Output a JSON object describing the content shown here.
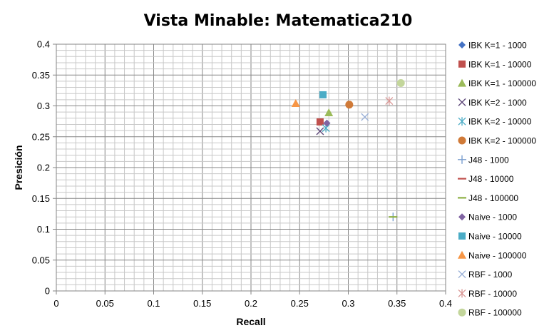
{
  "chart_data": {
    "type": "scatter",
    "title": "Vista Minable: Matematica210",
    "xlabel": "Recall",
    "ylabel": "Presición",
    "xlim": [
      0,
      0.4
    ],
    "ylim": [
      0,
      0.4
    ],
    "x_ticks": [
      "0",
      "0.05",
      "0.1",
      "0.15",
      "0.2",
      "0.25",
      "0.3",
      "0.35",
      "0.4"
    ],
    "y_ticks": [
      "0",
      "0.05",
      "0.1",
      "0.15",
      "0.2",
      "0.25",
      "0.3",
      "0.35",
      "0.4"
    ],
    "grid": "major and minor",
    "legend_position": "right",
    "series": [
      {
        "name": "IBK K=1 - 1000",
        "marker": "diamond",
        "color": "#4472C4",
        "points": [
          [
            0.278,
            0.272
          ]
        ]
      },
      {
        "name": "IBK K=1 - 10000",
        "marker": "square",
        "color": "#C0504D",
        "points": [
          [
            0.271,
            0.274
          ]
        ]
      },
      {
        "name": "IBK K=1 - 100000",
        "marker": "triangle",
        "color": "#9BBB59",
        "points": [
          [
            0.28,
            0.289
          ]
        ]
      },
      {
        "name": "IBK K=2 - 1000",
        "marker": "x",
        "color": "#604A7B",
        "points": [
          [
            0.271,
            0.259
          ]
        ]
      },
      {
        "name": "IBK K=2 - 10000",
        "marker": "star",
        "color": "#4BACC6",
        "points": [
          [
            0.277,
            0.264
          ]
        ]
      },
      {
        "name": "IBK K=2 - 100000",
        "marker": "circle",
        "color": "#D07A38",
        "points": [
          [
            0.301,
            0.302
          ]
        ]
      },
      {
        "name": "J48 - 1000",
        "marker": "plus",
        "color": "#7B9FCF",
        "points": [
          [
            0.346,
            0.12
          ]
        ]
      },
      {
        "name": "J48 - 10000",
        "marker": "dash",
        "color": "#C0504D",
        "points": []
      },
      {
        "name": "J48 - 100000",
        "marker": "dash",
        "color": "#8EB045",
        "points": [
          [
            0.346,
            0.12
          ]
        ]
      },
      {
        "name": "Naive - 1000",
        "marker": "diamond",
        "color": "#8064A2",
        "points": [
          [
            0.278,
            0.272
          ]
        ]
      },
      {
        "name": "Naive - 10000",
        "marker": "square",
        "color": "#4BACC6",
        "points": [
          [
            0.274,
            0.318
          ]
        ]
      },
      {
        "name": "Naive - 100000",
        "marker": "triangle",
        "color": "#F79646",
        "points": [
          [
            0.246,
            0.304
          ]
        ]
      },
      {
        "name": "RBF - 1000",
        "marker": "x",
        "color": "#9CB2D8",
        "points": [
          [
            0.317,
            0.282
          ]
        ]
      },
      {
        "name": "RBF - 10000",
        "marker": "star",
        "color": "#D99694",
        "points": [
          [
            0.342,
            0.308
          ]
        ]
      },
      {
        "name": "RBF - 100000",
        "marker": "circle",
        "color": "#C3D69B",
        "points": [
          [
            0.354,
            0.337
          ]
        ]
      }
    ]
  }
}
